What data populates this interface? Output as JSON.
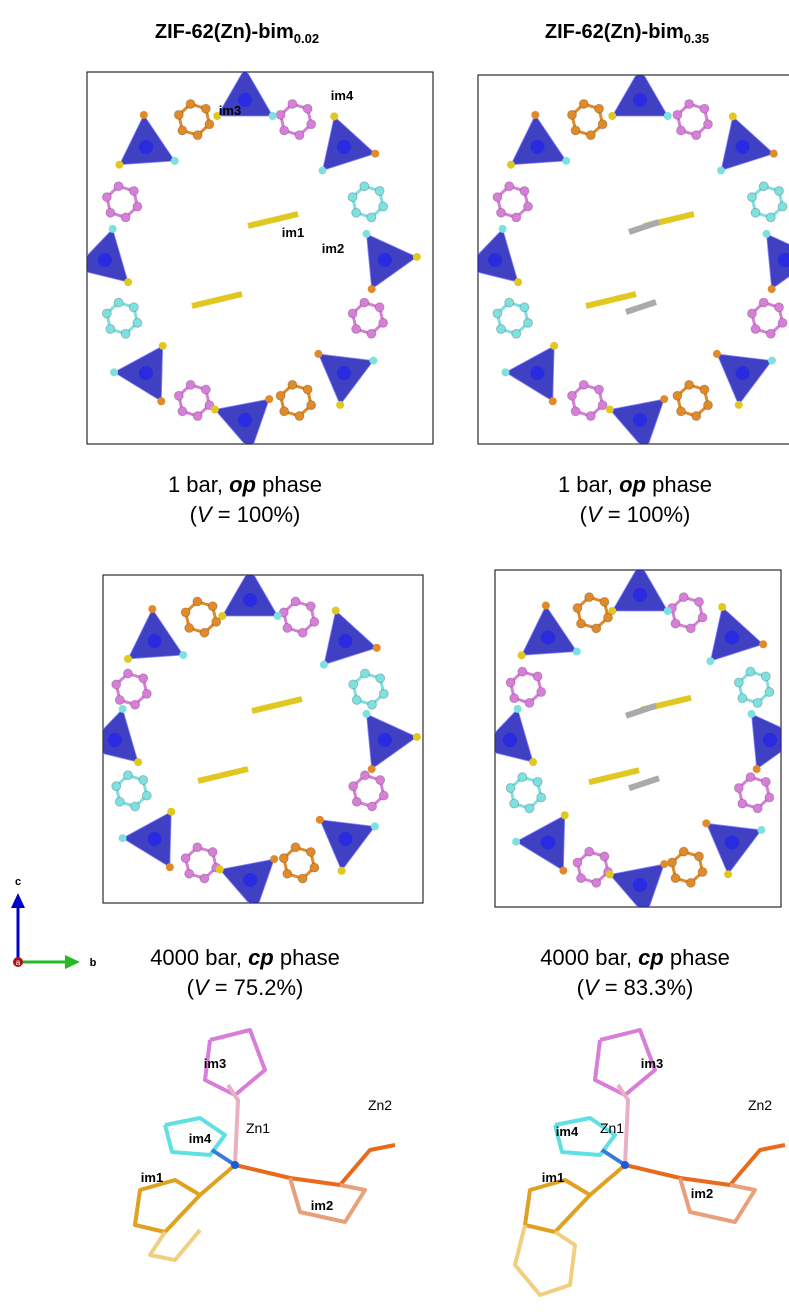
{
  "columns": [
    {
      "title": "ZIF-62(Zn)-bim",
      "title_subscript": "0.02",
      "structure_labels": [
        "im3",
        "im4",
        "im1",
        "im2"
      ],
      "top_caption": {
        "line1": [
          "1 bar, ",
          "op",
          " phase"
        ],
        "line2": [
          "(",
          "V",
          " = 100%)"
        ]
      },
      "bottom_caption": {
        "line1": [
          "4000 bar, ",
          "cp",
          " phase"
        ],
        "line2": [
          "(",
          "V",
          " = 75.2%)"
        ]
      },
      "fragment_labels": [
        "im3",
        "im4",
        "Zn1",
        "Zn2",
        "im1",
        "im2"
      ]
    },
    {
      "title": "ZIF-62(Zn)-bim",
      "title_subscript": "0.35",
      "top_caption": {
        "line1": [
          "1 bar, ",
          "op",
          " phase"
        ],
        "line2": [
          "(",
          "V",
          " = 100%)"
        ]
      },
      "bottom_caption": {
        "line1": [
          "4000 bar, ",
          "cp",
          " phase"
        ],
        "line2": [
          "(",
          "V",
          " = 83.3%)"
        ]
      },
      "fragment_labels": [
        "im3",
        "im4",
        "Zn1",
        "Zn2",
        "im1",
        "im2"
      ]
    }
  ],
  "axis_labels": [
    "c",
    "b",
    "a"
  ]
}
